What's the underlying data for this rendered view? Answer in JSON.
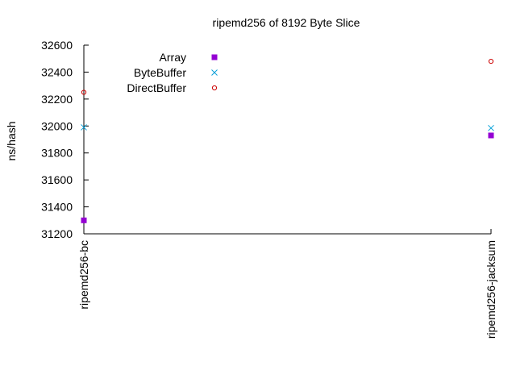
{
  "chart_data": {
    "type": "scatter",
    "title": "ripemd256 of 8192 Byte Slice",
    "xlabel": "",
    "ylabel": "ns/hash",
    "categories": [
      "ripemd256-bc",
      "ripemd256-jacksum"
    ],
    "ylim": [
      31200,
      32600
    ],
    "yticks": [
      31200,
      31400,
      31600,
      31800,
      32000,
      32200,
      32400,
      32600
    ],
    "grid": false,
    "legend_position": "top-left",
    "series": [
      {
        "name": "Array",
        "values": [
          31300,
          31930
        ],
        "color": "#9400d3",
        "marker": "filled-square"
      },
      {
        "name": "ByteBuffer",
        "values": [
          31990,
          31985
        ],
        "color": "#009ed7",
        "marker": "x"
      },
      {
        "name": "DirectBuffer",
        "values": [
          32250,
          32480
        ],
        "color": "#cc0000",
        "marker": "open-circle"
      }
    ]
  }
}
